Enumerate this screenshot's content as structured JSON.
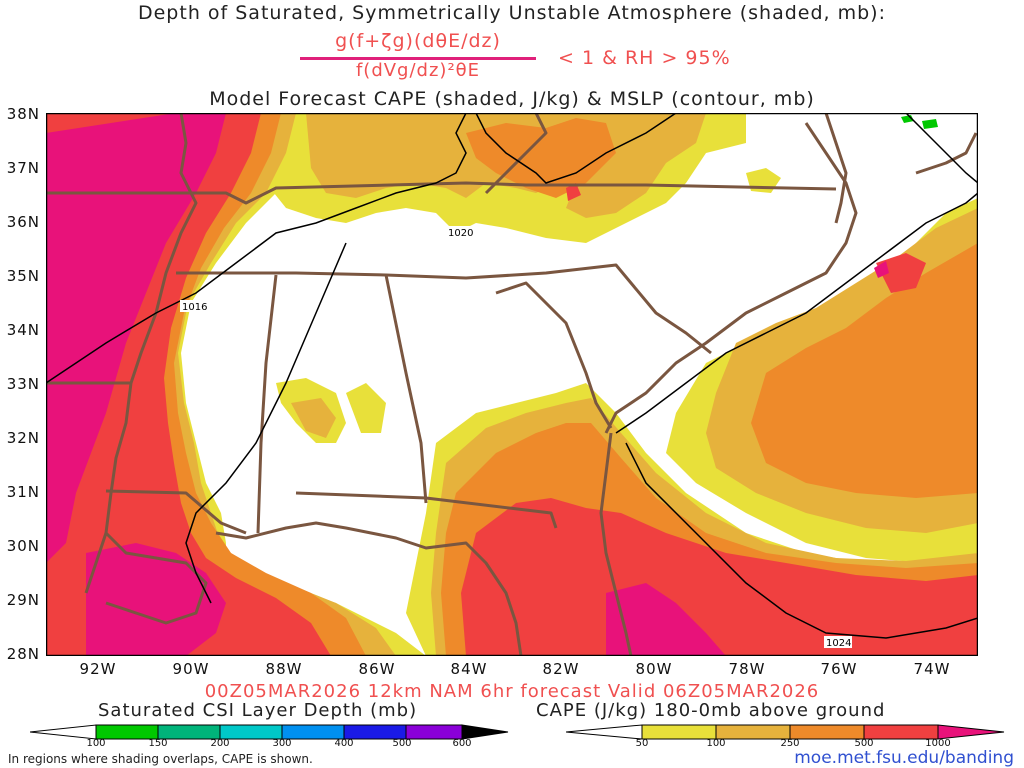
{
  "title": {
    "line1": "Depth of Saturated, Symmetrically Unstable Atmosphere (shaded, mb):",
    "fraction_numerator": "g(f+ζg)(dθE/dz)",
    "fraction_denominator": "f(dVg/dz)²θE",
    "condition": "< 1 & RH > 95%",
    "line2": "Model Forecast CAPE (shaded, J/kg) & MSLP (contour, mb)"
  },
  "lat_labels": [
    "38N",
    "37N",
    "36N",
    "35N",
    "34N",
    "33N",
    "32N",
    "31N",
    "30N",
    "29N",
    "28N"
  ],
  "lon_labels": [
    "92W",
    "90W",
    "88W",
    "86W",
    "84W",
    "82W",
    "80W",
    "78W",
    "76W",
    "74W"
  ],
  "isobar_labels": [
    "1020",
    "1016",
    "1024"
  ],
  "valid_line": "00Z05MAR2026 12km NAM 6hr forecast Valid 06Z05MAR2026",
  "csi_legend": {
    "title": "Saturated CSI Layer Depth (mb)",
    "ticks": [
      "100",
      "150",
      "200",
      "300",
      "400",
      "500",
      "600"
    ],
    "colors": [
      "#00c800",
      "#00b47a",
      "#00c8c8",
      "#0090f0",
      "#1a1ae6",
      "#8a00d8",
      "#000000"
    ]
  },
  "cape_legend": {
    "title": "CAPE (J/kg) 180-0mb above ground",
    "ticks": [
      "50",
      "100",
      "250",
      "500",
      "1000"
    ],
    "colors": [
      "#e8e03a",
      "#e6b23c",
      "#ee8a2a",
      "#f04040",
      "#e8127a"
    ]
  },
  "note": "In regions where shading overlaps, CAPE is shown.",
  "url": "moe.met.fsu.edu/banding",
  "colors": {
    "border": "#7a5640",
    "isobar": "#000000",
    "cape_50": "#e8e03a",
    "cape_100": "#e6b23c",
    "cape_250": "#ee8a2a",
    "cape_500": "#f04040",
    "cape_1000": "#e8127a",
    "csi_100": "#00c800"
  }
}
